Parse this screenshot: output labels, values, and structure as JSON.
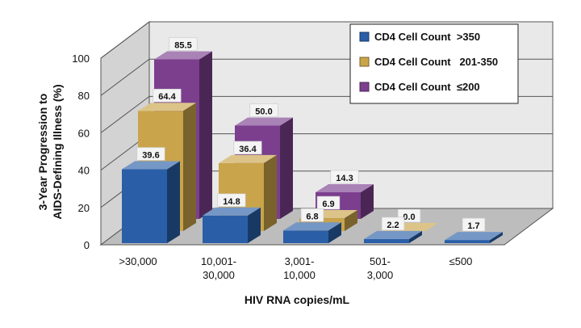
{
  "chart_data": {
    "type": "bar",
    "title": "",
    "xlabel": "HIV RNA copies/mL",
    "ylabel_lines": [
      "3-Year Progression to",
      "AIDS-Defining Illness (%)"
    ],
    "ylim": [
      0,
      100
    ],
    "yticks": [
      "0",
      "20",
      "40",
      "60",
      "80",
      "100"
    ],
    "categories": [
      [
        ">30,000"
      ],
      [
        "10,001-",
        "30,000"
      ],
      [
        "3,001-",
        "10,000"
      ],
      [
        "501-",
        "3,000"
      ],
      [
        "≤500"
      ]
    ],
    "series": [
      {
        "name": "CD4 Cell Count  >350",
        "color": "#2a5fa8",
        "values": [
          39.6,
          14.8,
          6.8,
          2.2,
          1.7
        ],
        "labels": [
          "39.6",
          "14.8",
          "6.8",
          "2.2",
          "1.7"
        ]
      },
      {
        "name": "CD4 Cell Count   201-350",
        "color": "#c9a44a",
        "values": [
          64.4,
          36.4,
          6.9,
          0.0,
          null
        ],
        "labels": [
          "64.4",
          "36.4",
          "6.9",
          "0.0",
          null
        ]
      },
      {
        "name": "CD4 Cell Count  ≤200",
        "color": "#7b3f8e",
        "values": [
          85.5,
          50.0,
          14.3,
          null,
          null
        ],
        "labels": [
          "85.5",
          "50.0",
          "14.3",
          null,
          null
        ]
      }
    ],
    "grid": true,
    "legend_position": "top-right",
    "three_d": true
  }
}
